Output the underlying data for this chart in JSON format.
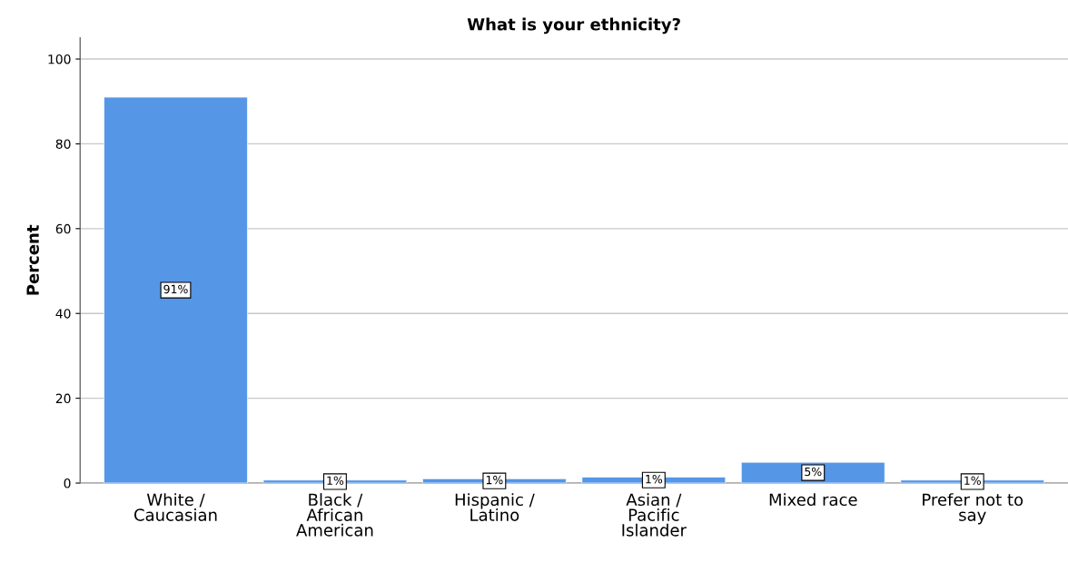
{
  "chart_data": {
    "type": "bar",
    "title": "What is your ethnicity?",
    "ylabel": "Percent",
    "categories": [
      "White /\nCaucasian",
      "Black /\nAfrican\nAmerican",
      "Hispanic /\nLatino",
      "Asian /\nPacific\nIslander",
      "Mixed race",
      "Prefer not to\nsay"
    ],
    "values": [
      91,
      0.7,
      1.0,
      1.4,
      4.9,
      0.7
    ],
    "value_labels": [
      "91%",
      "1%",
      "1%",
      "1%",
      "5%",
      "1%"
    ],
    "color": "#5596e6",
    "ylim": [
      0,
      105
    ],
    "yticks": [
      0,
      20,
      40,
      60,
      80,
      100
    ],
    "grid": "y"
  }
}
